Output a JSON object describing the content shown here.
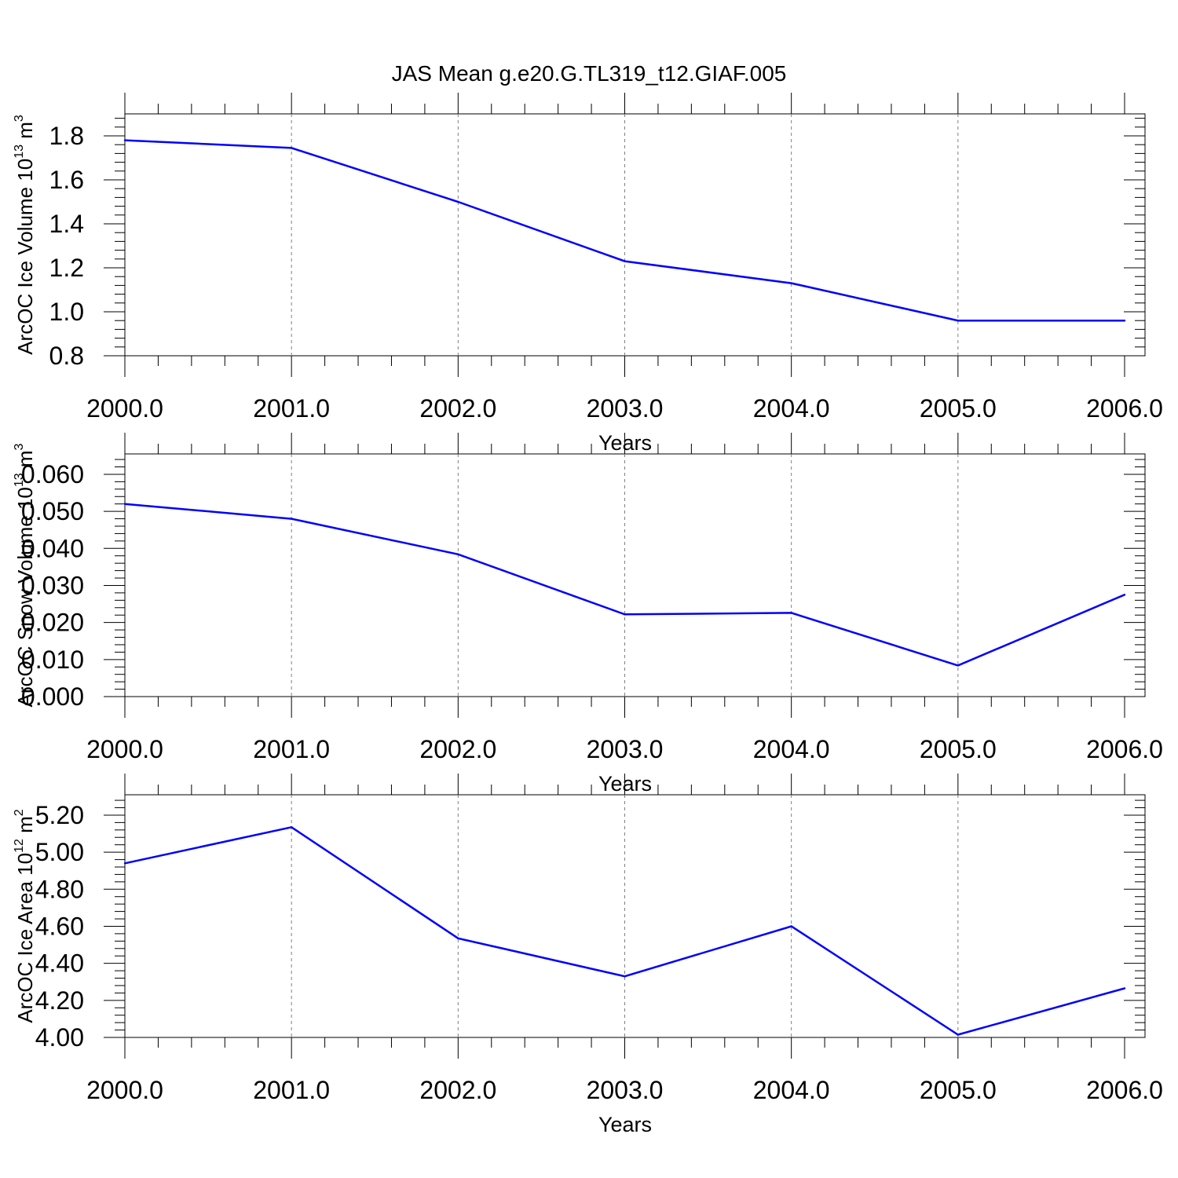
{
  "title": "JAS Mean g.e20.G.TL319_t12.GIAF.005",
  "colors": {
    "line": "#0000ff",
    "axis": "#000000",
    "grid": "#7f7f7f"
  },
  "chart_data": [
    {
      "type": "line",
      "xlabel": "Years",
      "ylabel": {
        "text": "ArcOC Ice Volume 10",
        "sup": "13",
        "unit": " m",
        "unit_sup": "3"
      },
      "xlim": [
        2000,
        2006
      ],
      "ylim": [
        0.8,
        1.9
      ],
      "x_ticks": [
        "2000.0",
        "2001.0",
        "2002.0",
        "2003.0",
        "2004.0",
        "2005.0",
        "2006.0"
      ],
      "y_ticks": [
        "0.8",
        "1.0",
        "1.2",
        "1.4",
        "1.6",
        "1.8"
      ],
      "grid": "vertical dashed at major x ticks",
      "x": [
        2000,
        2001,
        2002,
        2003,
        2004,
        2005,
        2006
      ],
      "values": [
        1.78,
        1.745,
        1.5,
        1.23,
        1.13,
        0.96,
        0.96
      ]
    },
    {
      "type": "line",
      "xlabel": "Years",
      "ylabel": {
        "text": "ArcOC Snow Volume 10",
        "sup": "13",
        "unit": " m",
        "unit_sup": "3"
      },
      "xlim": [
        2000,
        2006
      ],
      "ylim": [
        0.0,
        0.0655
      ],
      "x_ticks": [
        "2000.0",
        "2001.0",
        "2002.0",
        "2003.0",
        "2004.0",
        "2005.0",
        "2006.0"
      ],
      "y_ticks": [
        "0.000",
        "0.010",
        "0.020",
        "0.030",
        "0.040",
        "0.050",
        "0.060"
      ],
      "grid": "vertical dashed at major x ticks",
      "x": [
        2000,
        2001,
        2002,
        2003,
        2004,
        2005,
        2006
      ],
      "values": [
        0.052,
        0.048,
        0.0384,
        0.0222,
        0.0226,
        0.0084,
        0.0275
      ]
    },
    {
      "type": "line",
      "xlabel": "Years",
      "ylabel": {
        "text": "ArcOC Ice Area 10",
        "sup": "12",
        "unit": " m",
        "unit_sup": "2"
      },
      "xlim": [
        2000,
        2006
      ],
      "ylim": [
        4.0,
        5.31
      ],
      "x_ticks": [
        "2000.0",
        "2001.0",
        "2002.0",
        "2003.0",
        "2004.0",
        "2005.0",
        "2006.0"
      ],
      "y_ticks": [
        "4.00",
        "4.20",
        "4.40",
        "4.60",
        "4.80",
        "5.00",
        "5.20"
      ],
      "grid": "vertical dashed at major x ticks",
      "x": [
        2000,
        2001,
        2002,
        2003,
        2004,
        2005,
        2006
      ],
      "values": [
        4.94,
        5.135,
        4.535,
        4.33,
        4.6,
        4.015,
        4.265
      ]
    }
  ]
}
